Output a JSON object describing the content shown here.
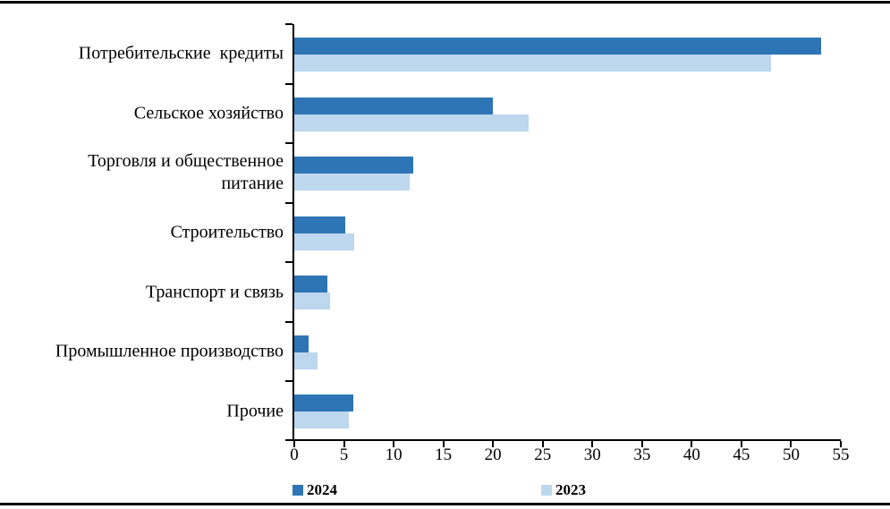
{
  "chart_data": {
    "type": "bar",
    "orientation": "horizontal",
    "categories": [
      {
        "lines": [
          "Потребительские  кредиты"
        ]
      },
      {
        "lines": [
          "Сельское хозяйство"
        ]
      },
      {
        "lines": [
          "Торговля и общественное",
          "питание"
        ]
      },
      {
        "lines": [
          "Строительство"
        ]
      },
      {
        "lines": [
          "Транспорт и связь"
        ]
      },
      {
        "lines": [
          "Промышленное производство"
        ]
      },
      {
        "lines": [
          "Прочие"
        ]
      }
    ],
    "series": [
      {
        "name": "2024",
        "color": "#2E75B6",
        "values": [
          53,
          20,
          12,
          5.1,
          3.3,
          1.4,
          5.9
        ]
      },
      {
        "name": "2023",
        "color": "#BDD7EE",
        "values": [
          48,
          23.6,
          11.6,
          6.0,
          3.6,
          2.3,
          5.5
        ]
      }
    ],
    "title": "",
    "xlabel": "",
    "ylabel": "",
    "xlim": [
      0,
      55
    ],
    "xticks": [
      0,
      5,
      10,
      15,
      20,
      25,
      30,
      35,
      40,
      45,
      50,
      55
    ],
    "grid": false,
    "legend_position": "bottom"
  },
  "legend": {
    "items": [
      {
        "label": "2024",
        "color": "#2E75B6"
      },
      {
        "label": "2023",
        "color": "#BDD7EE"
      }
    ]
  }
}
